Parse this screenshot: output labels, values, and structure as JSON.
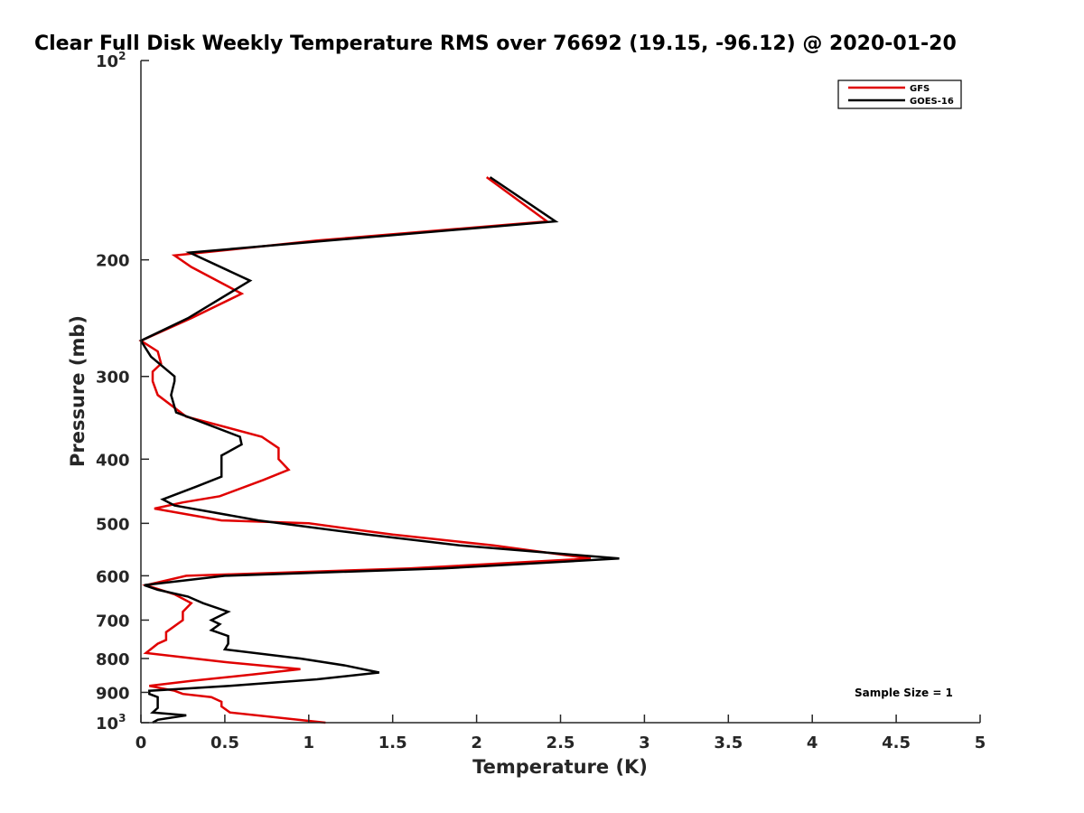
{
  "chart_data": {
    "type": "line",
    "title": "Clear Full Disk Weekly Temperature RMS over 76692 (19.15, -96.12) @ 2020-01-20",
    "xlabel": "Temperature (K)",
    "ylabel": "Pressure (mb)",
    "xlim": [
      0,
      5
    ],
    "ylim": [
      100,
      1000
    ],
    "yscale": "log",
    "y_reversed": true,
    "xticks": [
      {
        "value": 0,
        "label": "0"
      },
      {
        "value": 0.5,
        "label": "0.5"
      },
      {
        "value": 1,
        "label": "1"
      },
      {
        "value": 1.5,
        "label": "1.5"
      },
      {
        "value": 2,
        "label": "2"
      },
      {
        "value": 2.5,
        "label": "2.5"
      },
      {
        "value": 3,
        "label": "3"
      },
      {
        "value": 3.5,
        "label": "3.5"
      },
      {
        "value": 4,
        "label": "4"
      },
      {
        "value": 4.5,
        "label": "4.5"
      },
      {
        "value": 5,
        "label": "5"
      }
    ],
    "yticks": [
      {
        "value": 100,
        "label": "10",
        "sup": "2"
      },
      {
        "value": 200,
        "label": "200"
      },
      {
        "value": 300,
        "label": "300"
      },
      {
        "value": 400,
        "label": "400"
      },
      {
        "value": 500,
        "label": "500"
      },
      {
        "value": 600,
        "label": "600"
      },
      {
        "value": 700,
        "label": "700"
      },
      {
        "value": 800,
        "label": "800"
      },
      {
        "value": 900,
        "label": "900"
      },
      {
        "value": 1000,
        "label": "10",
        "sup": "3"
      }
    ],
    "legend_position": "top-right",
    "annotation": "Sample Size = 1",
    "series": [
      {
        "name": "GFS",
        "color": "#e00000",
        "points": [
          [
            2.06,
            150
          ],
          [
            2.42,
            175
          ],
          [
            1.05,
            187
          ],
          [
            0.2,
            197
          ],
          [
            0.3,
            205
          ],
          [
            0.6,
            225
          ],
          [
            0.3,
            245
          ],
          [
            0.0,
            265
          ],
          [
            0.1,
            275
          ],
          [
            0.12,
            287
          ],
          [
            0.07,
            295
          ],
          [
            0.07,
            305
          ],
          [
            0.1,
            320
          ],
          [
            0.27,
            345
          ],
          [
            0.72,
            370
          ],
          [
            0.82,
            385
          ],
          [
            0.82,
            400
          ],
          [
            0.88,
            415
          ],
          [
            0.73,
            430
          ],
          [
            0.47,
            455
          ],
          [
            0.25,
            465
          ],
          [
            0.08,
            475
          ],
          [
            0.48,
            495
          ],
          [
            1.0,
            500
          ],
          [
            1.5,
            520
          ],
          [
            2.1,
            540
          ],
          [
            2.68,
            565
          ],
          [
            1.6,
            585
          ],
          [
            0.27,
            600
          ],
          [
            0.03,
            620
          ],
          [
            0.2,
            640
          ],
          [
            0.3,
            660
          ],
          [
            0.25,
            680
          ],
          [
            0.25,
            700
          ],
          [
            0.15,
            730
          ],
          [
            0.15,
            750
          ],
          [
            0.1,
            760
          ],
          [
            0.03,
            785
          ],
          [
            0.5,
            810
          ],
          [
            0.95,
            830
          ],
          [
            0.68,
            845
          ],
          [
            0.3,
            865
          ],
          [
            0.05,
            880
          ],
          [
            0.2,
            895
          ],
          [
            0.25,
            905
          ],
          [
            0.42,
            915
          ],
          [
            0.48,
            930
          ],
          [
            0.48,
            945
          ],
          [
            0.53,
            965
          ],
          [
            1.1,
            1000
          ]
        ]
      },
      {
        "name": "GOES-16",
        "color": "#000000",
        "points": [
          [
            2.08,
            150
          ],
          [
            2.47,
            175
          ],
          [
            1.12,
            187
          ],
          [
            0.29,
            195
          ],
          [
            0.65,
            215
          ],
          [
            0.28,
            245
          ],
          [
            0.0,
            265
          ],
          [
            0.06,
            280
          ],
          [
            0.2,
            300
          ],
          [
            0.2,
            305
          ],
          [
            0.18,
            320
          ],
          [
            0.21,
            340
          ],
          [
            0.59,
            370
          ],
          [
            0.6,
            380
          ],
          [
            0.48,
            395
          ],
          [
            0.48,
            410
          ],
          [
            0.48,
            425
          ],
          [
            0.33,
            440
          ],
          [
            0.13,
            460
          ],
          [
            0.2,
            470
          ],
          [
            0.7,
            495
          ],
          [
            1.35,
            520
          ],
          [
            1.9,
            540
          ],
          [
            2.85,
            565
          ],
          [
            1.8,
            585
          ],
          [
            0.5,
            600
          ],
          [
            0.02,
            620
          ],
          [
            0.1,
            630
          ],
          [
            0.28,
            645
          ],
          [
            0.37,
            660
          ],
          [
            0.52,
            680
          ],
          [
            0.42,
            700
          ],
          [
            0.47,
            710
          ],
          [
            0.42,
            725
          ],
          [
            0.52,
            740
          ],
          [
            0.52,
            760
          ],
          [
            0.5,
            775
          ],
          [
            0.95,
            800
          ],
          [
            1.22,
            820
          ],
          [
            1.42,
            840
          ],
          [
            1.05,
            860
          ],
          [
            0.53,
            880
          ],
          [
            0.05,
            895
          ],
          [
            0.05,
            905
          ],
          [
            0.1,
            915
          ],
          [
            0.1,
            930
          ],
          [
            0.1,
            950
          ],
          [
            0.07,
            965
          ],
          [
            0.27,
            975
          ],
          [
            0.1,
            990
          ],
          [
            0.07,
            1000
          ]
        ]
      }
    ]
  }
}
